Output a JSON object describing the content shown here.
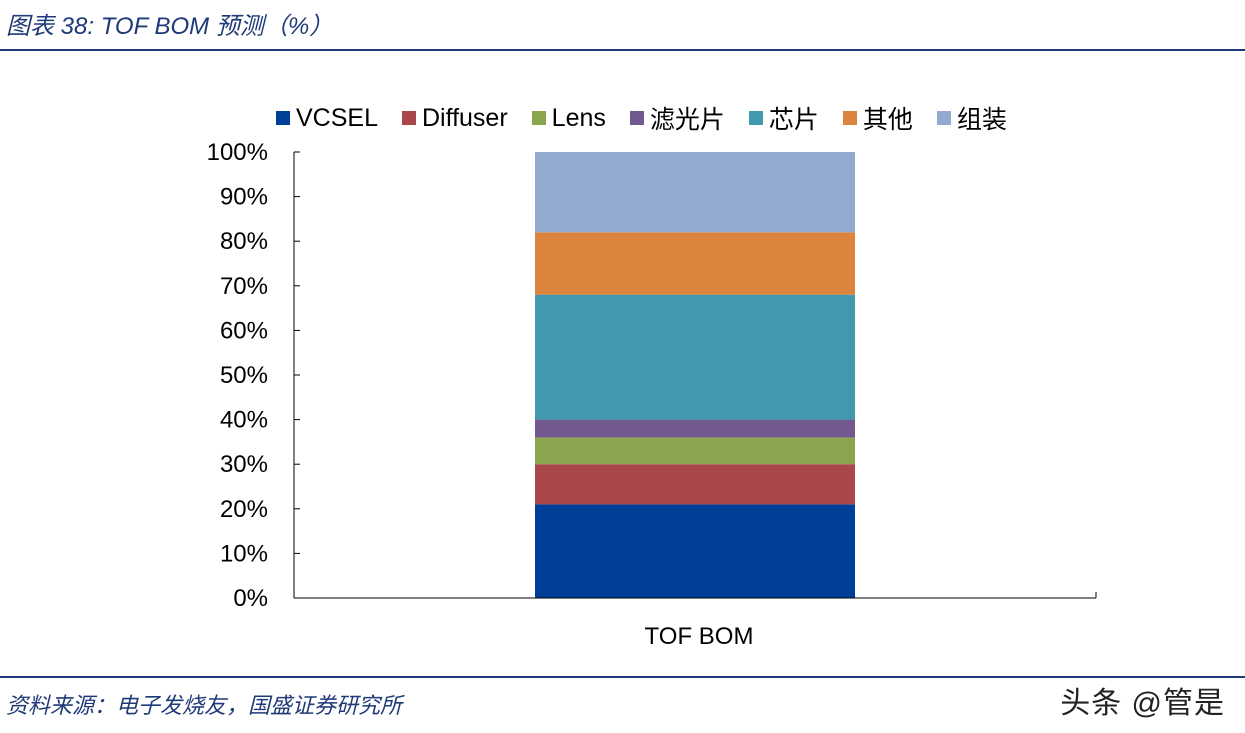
{
  "header": {
    "figure_title": "图表 38:  TOF BOM 预测（%）"
  },
  "footer": {
    "source": "资料来源：电子发烧友，国盛证券研究所",
    "watermark": "头条 @管是"
  },
  "chart_data": {
    "type": "bar",
    "stacked": true,
    "categories": [
      "TOF BOM"
    ],
    "series": [
      {
        "name": "VCSEL",
        "color": "#003f98",
        "values": [
          21
        ]
      },
      {
        "name": "Diffuser",
        "color": "#a9474a",
        "values": [
          9
        ]
      },
      {
        "name": "Lens",
        "color": "#89a54e",
        "values": [
          6
        ]
      },
      {
        "name": "滤光片",
        "color": "#71588f",
        "values": [
          4
        ]
      },
      {
        "name": "芯片",
        "color": "#4198af",
        "values": [
          28
        ]
      },
      {
        "name": "其他",
        "color": "#db843d",
        "values": [
          14
        ]
      },
      {
        "name": "组装",
        "color": "#93a9cf",
        "values": [
          18
        ]
      }
    ],
    "ylim": [
      0,
      100
    ],
    "yticks": [
      0,
      10,
      20,
      30,
      40,
      50,
      60,
      70,
      80,
      90,
      100
    ],
    "ytick_labels": [
      "0%",
      "10%",
      "20%",
      "30%",
      "40%",
      "50%",
      "60%",
      "70%",
      "80%",
      "90%",
      "100%"
    ],
    "grid": false,
    "legend": "top"
  }
}
